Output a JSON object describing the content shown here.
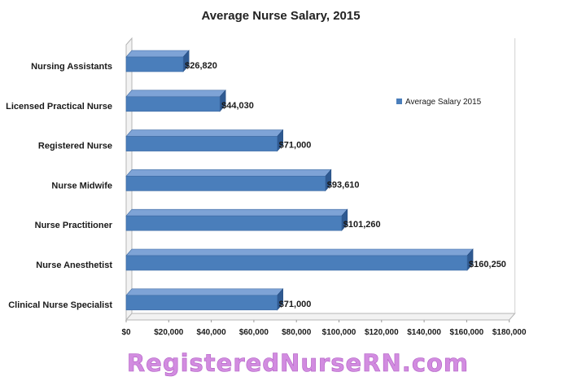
{
  "chart_data": {
    "type": "bar",
    "orientation": "horizontal",
    "title": "Average Nurse Salary, 2015",
    "categories": [
      "Nursing Assistants",
      "Licensed Practical Nurse",
      "Registered Nurse",
      "Nurse Midwife",
      "Nurse Practitioner",
      "Nurse Anesthetist",
      "Clinical Nurse Specialist"
    ],
    "series": [
      {
        "name": "Average Salary 2015",
        "values": [
          26820,
          44030,
          71000,
          93610,
          101260,
          160250,
          71000
        ],
        "data_labels": [
          "$26,820",
          "$44,030",
          "$71,000",
          "$93,610",
          "$101,260",
          "$160,250",
          "$71,000"
        ],
        "color": "#4a7ebb"
      }
    ],
    "xlim": [
      0,
      180000
    ],
    "x_ticks": [
      0,
      20000,
      40000,
      60000,
      80000,
      100000,
      120000,
      140000,
      160000,
      180000
    ],
    "x_tick_labels": [
      "$0",
      "$20,000",
      "$40,000",
      "$60,000",
      "$80,000",
      "$100,000",
      "$120,000",
      "$140,000",
      "$160,000",
      "$180,000"
    ],
    "xlabel": "",
    "ylabel": "",
    "grid": false,
    "legend_position": "right",
    "style": "3d"
  },
  "watermark": "RegisteredNurseRN.com",
  "colors": {
    "bar_front": "#4a7ebb",
    "bar_top": "#7ea3d6",
    "bar_side": "#2f5a92",
    "watermark": "#d28ce0"
  }
}
